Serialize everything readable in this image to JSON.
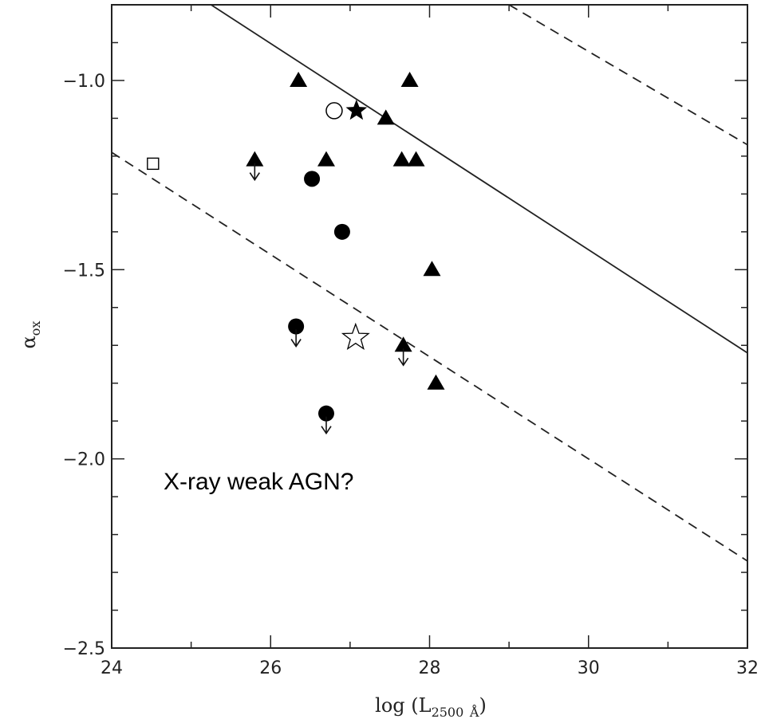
{
  "chart_data": {
    "type": "scatter",
    "xlabel": "log (L2500 Å)",
    "ylabel": "αox",
    "xlim": [
      24,
      32
    ],
    "ylim": [
      -2.5,
      -0.8
    ],
    "x_ticks": [
      24,
      26,
      28,
      30,
      32
    ],
    "x_tick_labels": [
      "24",
      "26",
      "28",
      "30",
      "32"
    ],
    "y_ticks": [
      -1.0,
      -1.5,
      -2.0,
      -2.5
    ],
    "y_tick_labels": [
      "−1.0",
      "−1.5",
      "−2.0",
      "−2.5"
    ],
    "grid": false,
    "legend": "none",
    "annotation": "X-ray weak AGN?",
    "lines": [
      {
        "style": "solid",
        "points": [
          [
            25.25,
            -0.8
          ],
          [
            32,
            -1.72
          ]
        ]
      },
      {
        "style": "dashed",
        "points": [
          [
            24,
            -1.19
          ],
          [
            32,
            -2.27
          ]
        ]
      },
      {
        "style": "dashed",
        "points": [
          [
            29.0,
            -0.8
          ],
          [
            32,
            -1.17
          ]
        ]
      }
    ],
    "series": [
      {
        "marker": "filled-triangle",
        "points": [
          {
            "x": 26.35,
            "y": -1.0,
            "upper_limit": false
          },
          {
            "x": 27.75,
            "y": -1.0,
            "upper_limit": false
          },
          {
            "x": 27.45,
            "y": -1.1,
            "upper_limit": false
          },
          {
            "x": 25.8,
            "y": -1.21,
            "upper_limit": true
          },
          {
            "x": 26.7,
            "y": -1.21,
            "upper_limit": false
          },
          {
            "x": 27.65,
            "y": -1.21,
            "upper_limit": false
          },
          {
            "x": 27.83,
            "y": -1.21,
            "upper_limit": false
          },
          {
            "x": 28.03,
            "y": -1.5,
            "upper_limit": false
          },
          {
            "x": 27.67,
            "y": -1.7,
            "upper_limit": true
          },
          {
            "x": 28.08,
            "y": -1.8,
            "upper_limit": false
          }
        ]
      },
      {
        "marker": "filled-circle",
        "points": [
          {
            "x": 26.52,
            "y": -1.26,
            "upper_limit": false
          },
          {
            "x": 26.9,
            "y": -1.4,
            "upper_limit": false
          },
          {
            "x": 26.32,
            "y": -1.65,
            "upper_limit": true
          },
          {
            "x": 26.7,
            "y": -1.88,
            "upper_limit": true
          }
        ]
      },
      {
        "marker": "open-circle",
        "points": [
          {
            "x": 26.8,
            "y": -1.08,
            "upper_limit": false
          }
        ]
      },
      {
        "marker": "filled-star",
        "points": [
          {
            "x": 27.08,
            "y": -1.08,
            "upper_limit": false
          }
        ]
      },
      {
        "marker": "open-star",
        "points": [
          {
            "x": 27.07,
            "y": -1.68,
            "upper_limit": false
          }
        ]
      },
      {
        "marker": "open-square",
        "points": [
          {
            "x": 24.52,
            "y": -1.22,
            "upper_limit": false
          }
        ]
      }
    ]
  }
}
